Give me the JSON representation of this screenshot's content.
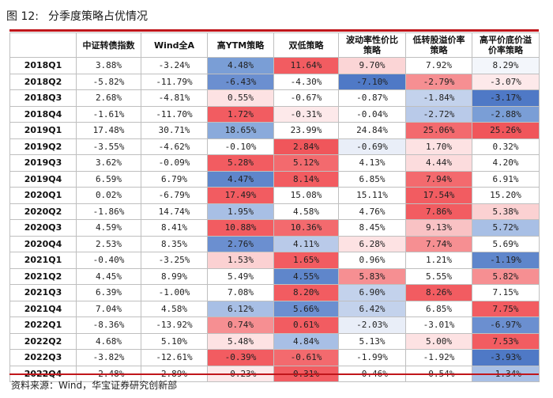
{
  "figure": {
    "label": "图 12:",
    "title": "分季度策略占优情况"
  },
  "columns": [
    "中证转债指数",
    "Wind全A",
    "高YTM策略",
    "双低策略",
    "波动率性价比策略",
    "低转股溢价率策略",
    "高平价底价溢价率策略"
  ],
  "colors": {
    "rule": "#c0161b",
    "neg_strong": "#4f79c6",
    "pos_strong": "#f0565b"
  },
  "rows": [
    {
      "q": "2018Q1",
      "v": [
        "3.88%",
        "-3.24%",
        "4.48%",
        "11.64%",
        "9.70%",
        "7.92%",
        "8.29%"
      ]
    },
    {
      "q": "2018Q2",
      "v": [
        "-5.82%",
        "-11.79%",
        "-6.43%",
        "-4.30%",
        "-7.10%",
        "-2.79%",
        "-3.07%"
      ]
    },
    {
      "q": "2018Q3",
      "v": [
        "2.68%",
        "-4.81%",
        "0.55%",
        "-0.67%",
        "-0.87%",
        "-1.84%",
        "-3.17%"
      ]
    },
    {
      "q": "2018Q4",
      "v": [
        "-1.61%",
        "-11.70%",
        "1.72%",
        "-0.31%",
        "-0.04%",
        "-2.72%",
        "-2.88%"
      ]
    },
    {
      "q": "2019Q1",
      "v": [
        "17.48%",
        "30.71%",
        "18.65%",
        "23.99%",
        "24.84%",
        "25.06%",
        "25.26%"
      ]
    },
    {
      "q": "2019Q2",
      "v": [
        "-3.55%",
        "-4.62%",
        "-0.10%",
        "2.84%",
        "-0.69%",
        "1.70%",
        "0.32%"
      ]
    },
    {
      "q": "2019Q3",
      "v": [
        "3.62%",
        "-0.09%",
        "5.28%",
        "5.12%",
        "4.13%",
        "4.44%",
        "4.20%"
      ]
    },
    {
      "q": "2019Q4",
      "v": [
        "6.59%",
        "6.79%",
        "4.47%",
        "8.14%",
        "6.85%",
        "7.94%",
        "6.91%"
      ]
    },
    {
      "q": "2020Q1",
      "v": [
        "0.02%",
        "-6.79%",
        "17.49%",
        "15.08%",
        "15.11%",
        "17.54%",
        "15.20%"
      ]
    },
    {
      "q": "2020Q2",
      "v": [
        "-1.86%",
        "14.74%",
        "1.95%",
        "4.58%",
        "4.76%",
        "7.86%",
        "5.38%"
      ]
    },
    {
      "q": "2020Q3",
      "v": [
        "4.59%",
        "8.41%",
        "10.88%",
        "10.36%",
        "8.45%",
        "9.13%",
        "5.72%"
      ]
    },
    {
      "q": "2020Q4",
      "v": [
        "2.53%",
        "8.35%",
        "2.76%",
        "4.11%",
        "6.28%",
        "7.74%",
        "5.69%"
      ]
    },
    {
      "q": "2021Q1",
      "v": [
        "-0.40%",
        "-3.25%",
        "1.53%",
        "1.65%",
        "0.96%",
        "1.21%",
        "-1.19%"
      ]
    },
    {
      "q": "2021Q2",
      "v": [
        "4.45%",
        "8.99%",
        "5.49%",
        "4.55%",
        "5.83%",
        "5.55%",
        "5.82%"
      ]
    },
    {
      "q": "2021Q3",
      "v": [
        "6.39%",
        "-1.00%",
        "7.08%",
        "8.20%",
        "6.90%",
        "8.26%",
        "7.15%"
      ]
    },
    {
      "q": "2021Q4",
      "v": [
        "7.04%",
        "4.58%",
        "6.12%",
        "5.66%",
        "6.42%",
        "6.85%",
        "7.75%"
      ]
    },
    {
      "q": "2022Q1",
      "v": [
        "-8.36%",
        "-13.92%",
        "0.74%",
        "0.61%",
        "-2.03%",
        "-3.01%",
        "-6.97%"
      ]
    },
    {
      "q": "2022Q2",
      "v": [
        "4.68%",
        "5.10%",
        "5.48%",
        "4.84%",
        "5.13%",
        "5.00%",
        "7.53%"
      ]
    },
    {
      "q": "2022Q3",
      "v": [
        "-3.82%",
        "-12.61%",
        "-0.39%",
        "-0.61%",
        "-1.99%",
        "-1.92%",
        "-3.93%"
      ]
    },
    {
      "q": "2022Q4",
      "v": [
        "-2.48%",
        "2.89%",
        "-0.23%",
        "0.31%",
        "-0.46%",
        "-0.54%",
        "-1.34%"
      ]
    }
  ],
  "cell_shading": [
    [
      "",
      "",
      "#7a9ed6",
      "#f25c61",
      "#fbd5d6",
      "#ffffff",
      "#f3f6fb"
    ],
    [
      "",
      "",
      "#6b8fd0",
      "#ffffff",
      "#4f79c6",
      "#f68f92",
      "#fde9ea"
    ],
    [
      "",
      "",
      "#fde2e3",
      "#ffffff",
      "#ffffff",
      "#c3d2ec",
      "#4f79c6"
    ],
    [
      "",
      "",
      "#f25c61",
      "#fde9ea",
      "#ffffff",
      "#b9cae9",
      "#7a9ed6"
    ],
    [
      "",
      "",
      "#8aaadb",
      "#ffffff",
      "#ffffff",
      "#f36a6e",
      "#f0565b"
    ],
    [
      "",
      "",
      "#ffffff",
      "#f0565b",
      "#e9eef8",
      "#fde2e3",
      "#ffffff"
    ],
    [
      "",
      "",
      "#f25c61",
      "#f36a6e",
      "#ffffff",
      "#fcdcdd",
      "#ffffff"
    ],
    [
      "",
      "",
      "#5f86cb",
      "#f25c61",
      "#ffffff",
      "#f36a6e",
      "#ffffff"
    ],
    [
      "",
      "",
      "#f25c61",
      "#ffffff",
      "#ffffff",
      "#f25c61",
      "#ffffff"
    ],
    [
      "",
      "",
      "#a8bfe5",
      "#ffffff",
      "#ffffff",
      "#f25c61",
      "#fbd1d2"
    ],
    [
      "",
      "",
      "#f25c61",
      "#f36a6e",
      "#ffffff",
      "#f9c2c4",
      "#a8bfe5"
    ],
    [
      "",
      "",
      "#6b8fd0",
      "#b9cae9",
      "#fde2e3",
      "#f68f92",
      "#ffffff"
    ],
    [
      "",
      "",
      "#fbd1d2",
      "#f25c61",
      "#ffffff",
      "#ffffff",
      "#5f86cb"
    ],
    [
      "",
      "",
      "#ffffff",
      "#5f86cb",
      "#f68f92",
      "#ffffff",
      "#f68f92"
    ],
    [
      "",
      "",
      "#ffffff",
      "#f25c61",
      "#c3d2ec",
      "#f25c61",
      "#ffffff"
    ],
    [
      "",
      "",
      "#a8bfe5",
      "#6b8fd0",
      "#c3d2ec",
      "#ffffff",
      "#f25c61"
    ],
    [
      "",
      "",
      "#f68f92",
      "#f25c61",
      "#e9eef8",
      "#ffffff",
      "#6b8fd0"
    ],
    [
      "",
      "",
      "#fde2e3",
      "#a8bfe5",
      "#ffffff",
      "#fde2e3",
      "#f25c61"
    ],
    [
      "",
      "",
      "#f25c61",
      "#f36a6e",
      "#ffffff",
      "#ffffff",
      "#4f79c6"
    ],
    [
      "",
      "",
      "#fde9ea",
      "#f25c61",
      "#ffffff",
      "#ffffff",
      "#a8bfe5"
    ]
  ],
  "source": "资料来源：Wind，华宝证券研究创新部"
}
